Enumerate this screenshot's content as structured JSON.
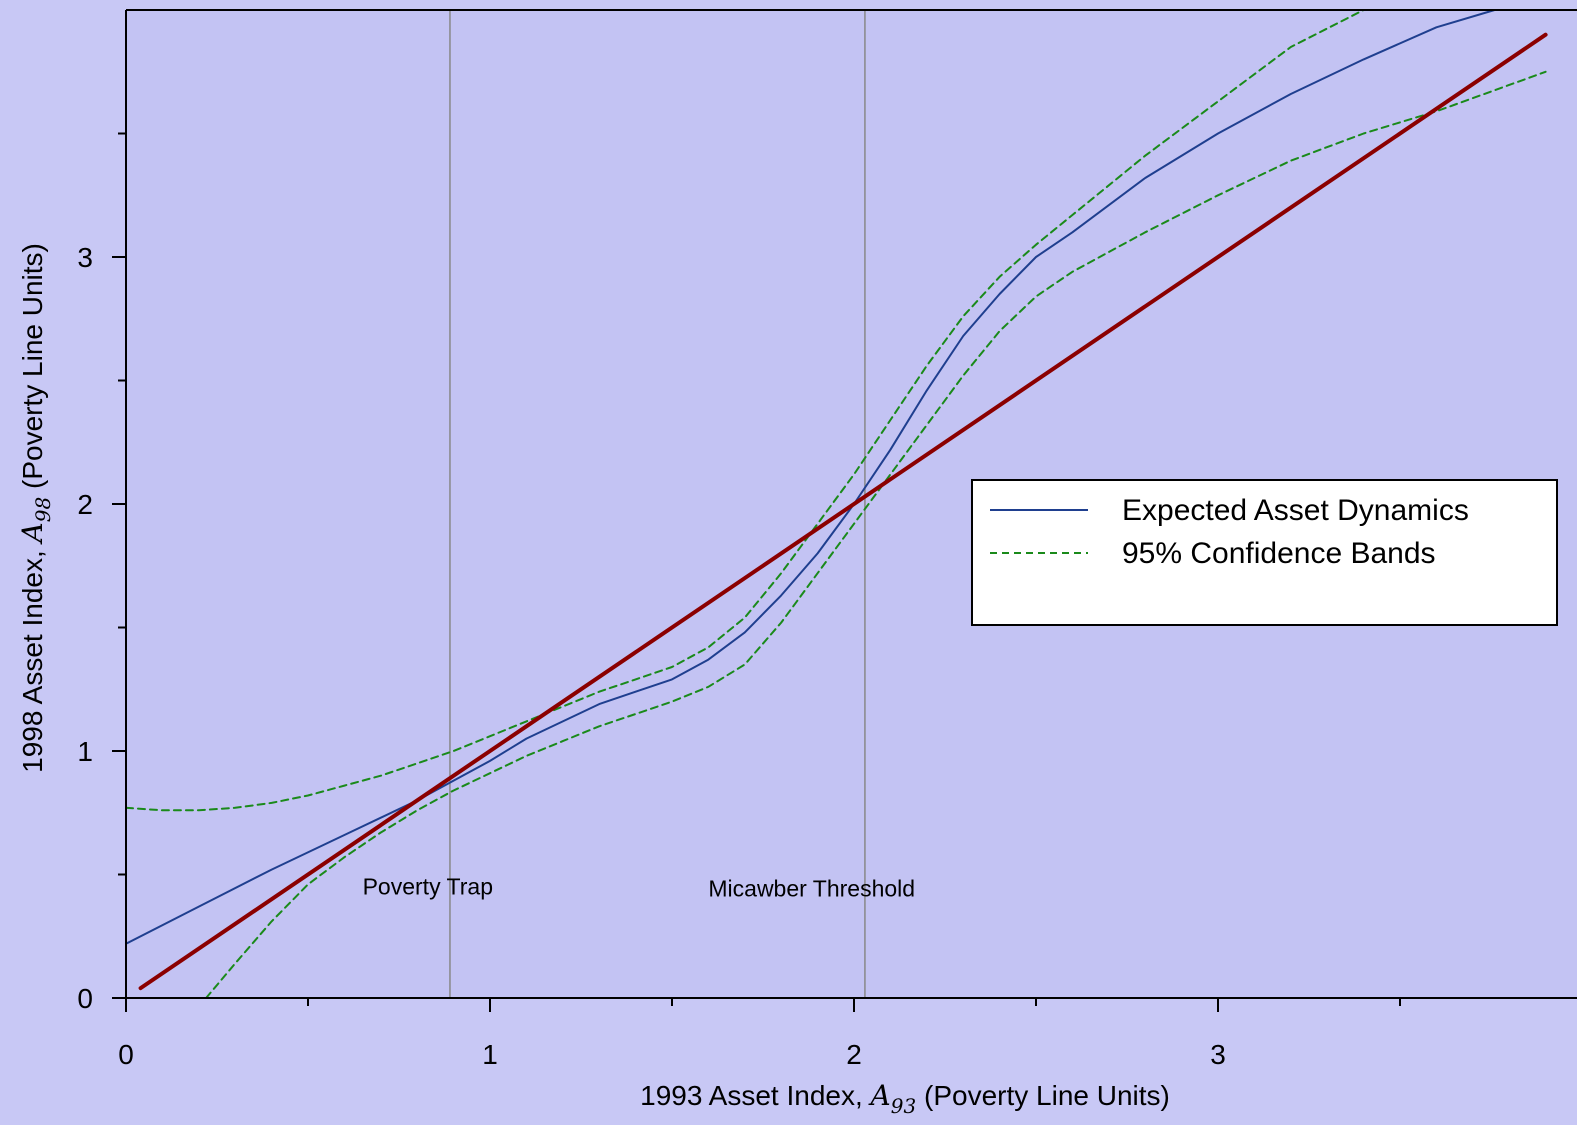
{
  "colors": {
    "background": "#c8c8f5",
    "plot_background": "#c3c3f3",
    "expected": "#1f3f8f",
    "bands": "#1a8a1a",
    "diagonal": "#8b0000",
    "threshold_lines": "#888888"
  },
  "chart_data": {
    "type": "line",
    "xlabel_pre": "1993 Asset Index, ",
    "xlabel_symbol": "A",
    "xlabel_sub": "93",
    "xlabel_post": " (Poverty Line Units)",
    "ylabel_pre": "1998 Asset Index,  ",
    "ylabel_symbol": "A",
    "ylabel_sub": "98",
    "ylabel_post": " (Poverty Line Units)",
    "xlim": [
      0,
      3.9
    ],
    "ylim": [
      0,
      4.0
    ],
    "x_ticks": [
      0,
      1,
      2,
      3
    ],
    "x_tick_labels": [
      "0",
      "1",
      "2",
      "3"
    ],
    "x_minor_ticks": [
      0.5,
      1.5,
      2.5,
      3.5
    ],
    "y_ticks": [
      0,
      1,
      2,
      3
    ],
    "y_tick_labels": [
      "0",
      "1",
      "2",
      "3"
    ],
    "y_minor_ticks": [
      0.5,
      1.5,
      2.5,
      3.5
    ],
    "grid": false,
    "legend_position": "middle-right",
    "series": [
      {
        "name": "Expected Asset Dynamics",
        "style": "solid",
        "x": [
          0,
          0.2,
          0.4,
          0.6,
          0.8,
          0.9,
          1.0,
          1.1,
          1.2,
          1.3,
          1.4,
          1.5,
          1.6,
          1.7,
          1.8,
          1.9,
          2.0,
          2.1,
          2.2,
          2.3,
          2.4,
          2.5,
          2.6,
          2.8,
          3.0,
          3.2,
          3.4,
          3.6,
          3.76
        ],
        "y": [
          0.22,
          0.37,
          0.52,
          0.66,
          0.8,
          0.88,
          0.96,
          1.05,
          1.12,
          1.19,
          1.24,
          1.29,
          1.37,
          1.48,
          1.63,
          1.8,
          2.0,
          2.22,
          2.46,
          2.68,
          2.85,
          3.0,
          3.1,
          3.32,
          3.5,
          3.66,
          3.8,
          3.93,
          4.0
        ]
      },
      {
        "name": "95% Confidence Bands",
        "style": "dashed",
        "x": [
          0,
          0.1,
          0.2,
          0.3,
          0.4,
          0.5,
          0.6,
          0.7,
          0.8,
          0.9,
          1.0,
          1.1,
          1.2,
          1.3,
          1.4,
          1.5,
          1.6,
          1.7,
          1.8,
          1.9,
          2.0,
          2.1,
          2.2,
          2.3,
          2.4,
          2.5,
          2.6,
          2.8,
          3.0,
          3.2,
          3.4
        ],
        "y": [
          0.77,
          0.76,
          0.76,
          0.77,
          0.79,
          0.82,
          0.86,
          0.9,
          0.95,
          1.0,
          1.06,
          1.12,
          1.18,
          1.24,
          1.29,
          1.34,
          1.42,
          1.54,
          1.72,
          1.92,
          2.12,
          2.34,
          2.56,
          2.76,
          2.92,
          3.05,
          3.17,
          3.41,
          3.63,
          3.85,
          4.0
        ]
      },
      {
        "name": "",
        "style": "dashed",
        "x": [
          0.22,
          0.3,
          0.4,
          0.5,
          0.6,
          0.7,
          0.8,
          0.9,
          1.0,
          1.1,
          1.2,
          1.3,
          1.4,
          1.5,
          1.6,
          1.7,
          1.8,
          1.9,
          2.0,
          2.1,
          2.2,
          2.3,
          2.4,
          2.5,
          2.6,
          2.8,
          3.0,
          3.2,
          3.4,
          3.6,
          3.9
        ],
        "y": [
          0.0,
          0.14,
          0.31,
          0.46,
          0.57,
          0.67,
          0.76,
          0.84,
          0.91,
          0.98,
          1.04,
          1.1,
          1.15,
          1.2,
          1.26,
          1.35,
          1.52,
          1.72,
          1.92,
          2.12,
          2.32,
          2.52,
          2.7,
          2.84,
          2.94,
          3.1,
          3.25,
          3.39,
          3.5,
          3.59,
          3.75
        ]
      },
      {
        "name": "",
        "style": "solid-thick",
        "x": [
          0.04,
          3.9
        ],
        "y": [
          0.04,
          3.9
        ]
      }
    ],
    "vlines": [
      0.89,
      2.03
    ],
    "annotations": [
      {
        "text": "Poverty Trap",
        "x": 0.65,
        "y": 0.42
      },
      {
        "text": "Micawber Threshold",
        "x": 1.6,
        "y": 0.41
      }
    ],
    "legend": [
      {
        "label": "Expected Asset Dynamics",
        "style": "solid"
      },
      {
        "label": "95% Confidence Bands",
        "style": "dashed"
      }
    ]
  }
}
